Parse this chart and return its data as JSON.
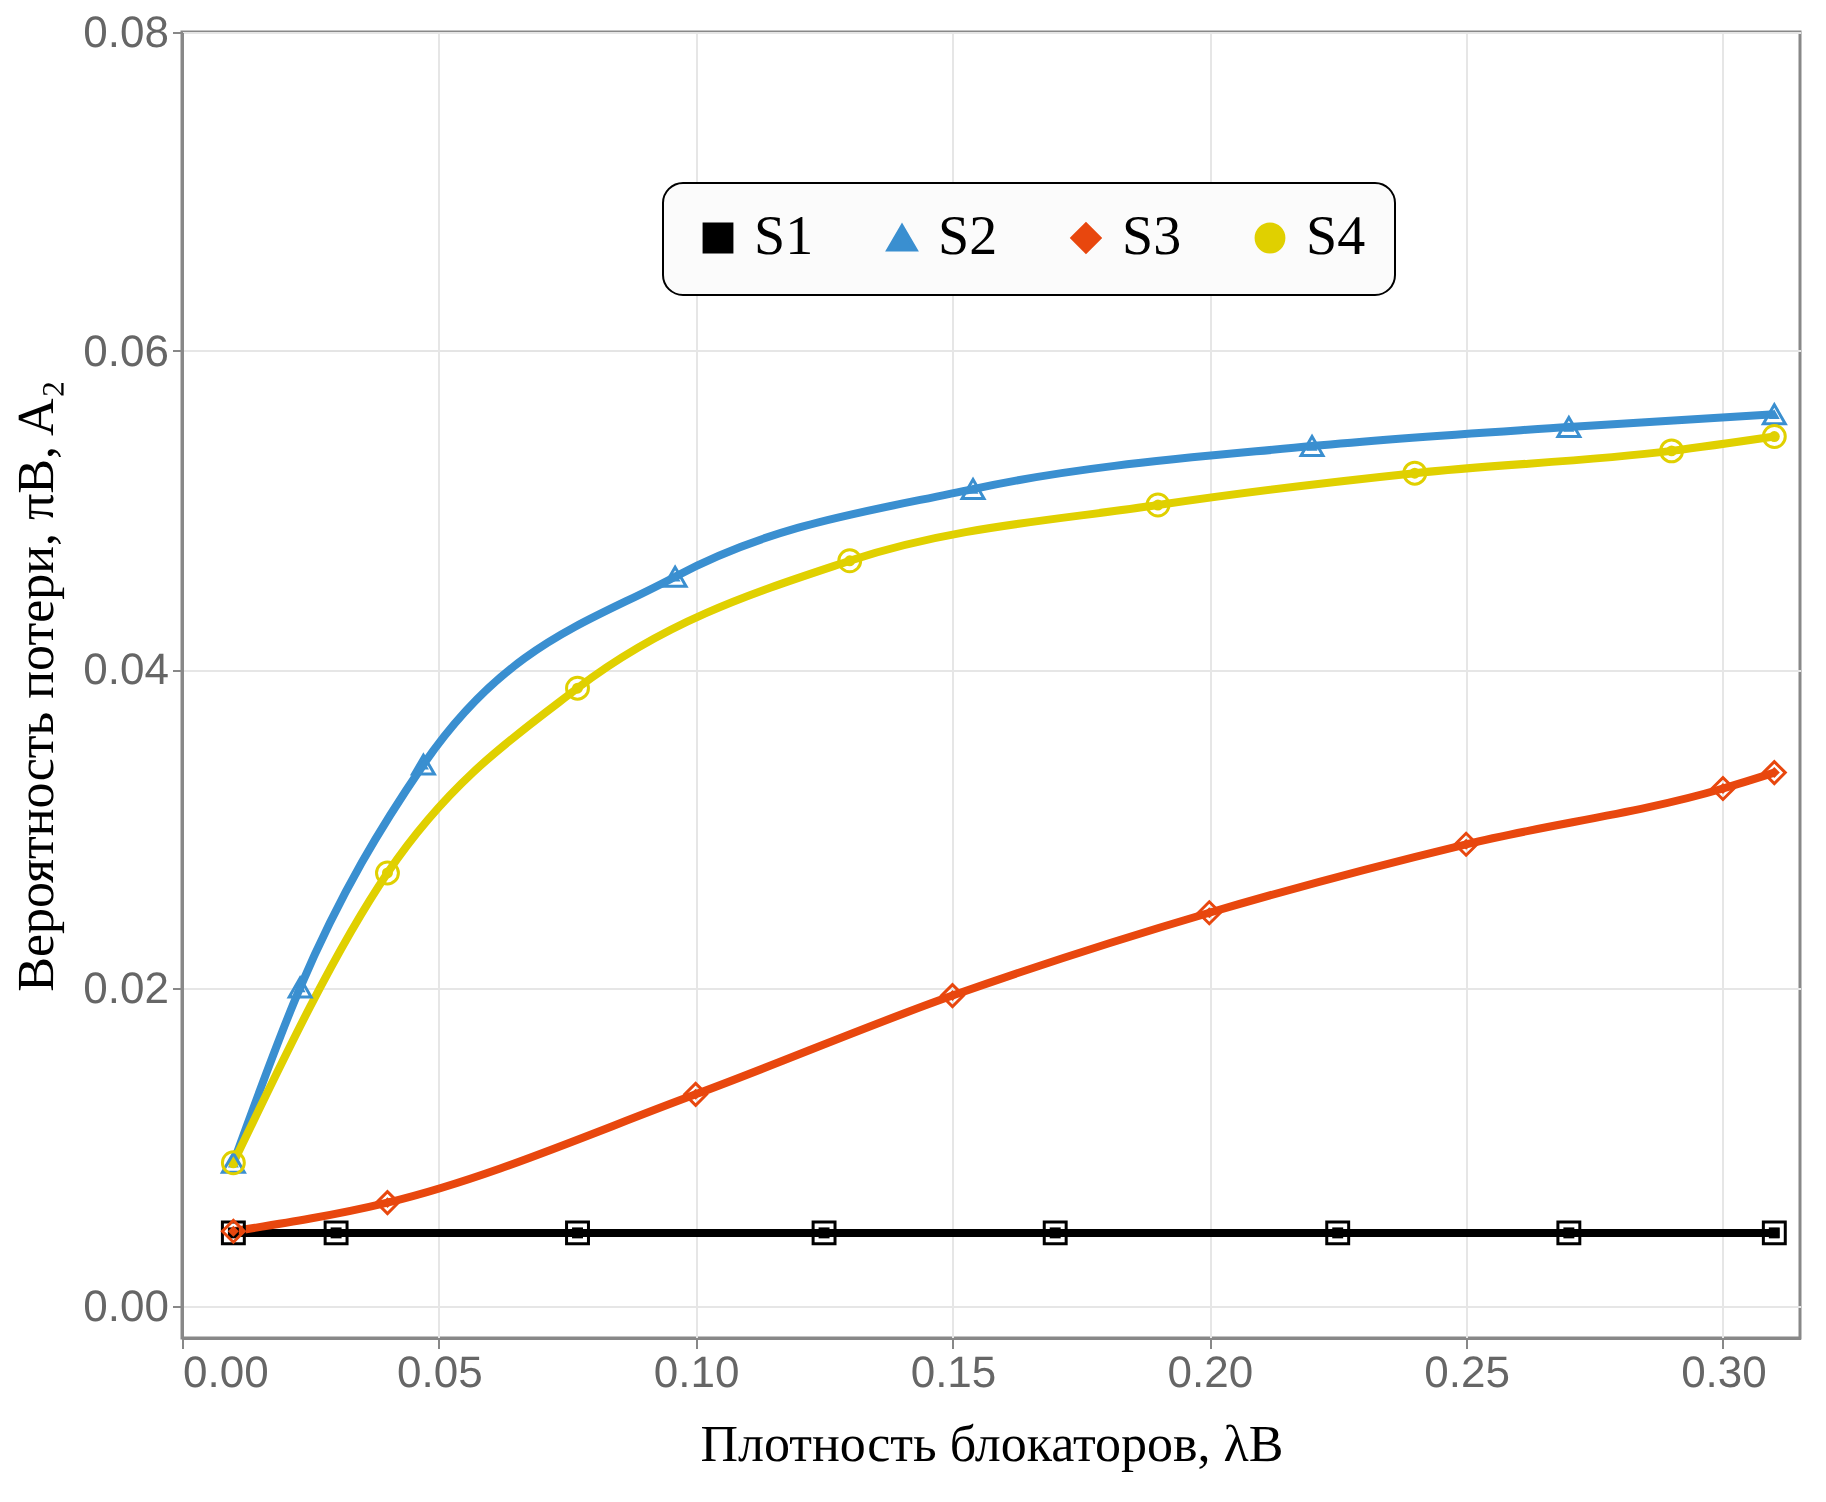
{
  "chart_data": {
    "type": "line",
    "xlabel": "Плотность блокаторов, λB",
    "ylabel": "Вероятность потери, πB, A₂",
    "xlim": [
      0,
      0.315
    ],
    "ylim": [
      -0.002,
      0.08
    ],
    "xticks": [
      {
        "value": 0,
        "label": "0.00"
      },
      0.05,
      {
        "value": 0.1,
        "label": "0.10"
      },
      0.15,
      {
        "value": 0.2,
        "label": "0.20"
      },
      0.25,
      {
        "value": 0.3,
        "label": "0.30"
      }
    ],
    "yticks": [
      {
        "value": 0,
        "label": "0.00"
      },
      0.02,
      0.04,
      0.06,
      0.08
    ],
    "grid": true,
    "legend": "top",
    "line_style": "solid",
    "series": [
      {
        "name": "S1",
        "color": "#000000",
        "marker": "square",
        "x": [
          0.01,
          0.03,
          0.077,
          0.125,
          0.17,
          0.225,
          0.27,
          0.31
        ],
        "values": [
          0.0046,
          0.0046,
          0.0046,
          0.0046,
          0.0046,
          0.0046,
          0.0046,
          0.0046
        ]
      },
      {
        "name": "S2",
        "color": "#3a8fd0",
        "marker": "triangle",
        "x": [
          0.01,
          0.023,
          0.047,
          0.096,
          0.154,
          0.22,
          0.27,
          0.31
        ],
        "values": [
          0.009,
          0.02,
          0.034,
          0.0458,
          0.0513,
          0.054,
          0.0552,
          0.056
        ]
      },
      {
        "name": "S3",
        "color": "#e8470e",
        "marker": "diamond",
        "x": [
          0.01,
          0.04,
          0.1,
          0.15,
          0.2,
          0.25,
          0.3,
          0.31
        ],
        "values": [
          0.0047,
          0.0065,
          0.0133,
          0.0195,
          0.0247,
          0.029,
          0.0325,
          0.0335
        ]
      },
      {
        "name": "S4",
        "color": "#e0d000",
        "marker": "circle",
        "x": [
          0.01,
          0.04,
          0.077,
          0.13,
          0.19,
          0.24,
          0.29,
          0.31
        ],
        "values": [
          0.009,
          0.0272,
          0.0388,
          0.0468,
          0.0503,
          0.0523,
          0.0537,
          0.0546
        ]
      }
    ]
  }
}
